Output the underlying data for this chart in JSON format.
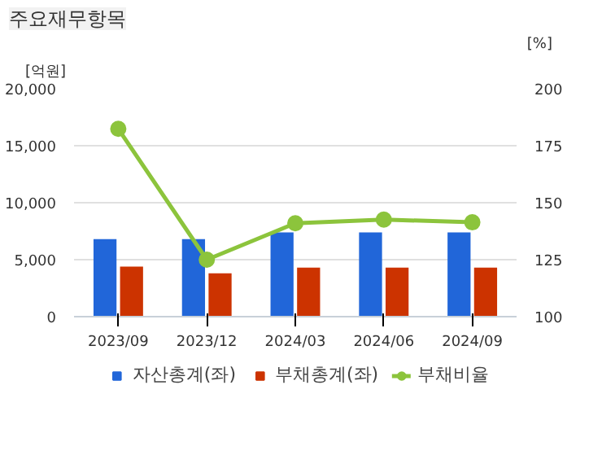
{
  "chart_data": {
    "type": "bar",
    "title": "주요재무항목",
    "ylabel": "[억원]",
    "y2label": "[%]",
    "categories": [
      "2023/09",
      "2023/12",
      "2024/03",
      "2024/06",
      "2024/09"
    ],
    "series": [
      {
        "name": "자산총계(좌)",
        "color": "#2166d9",
        "values": [
          6800,
          6800,
          7400,
          7400,
          7400
        ]
      },
      {
        "name": "부채총계(좌)",
        "color": "#cc3300",
        "values": [
          4400,
          3800,
          4300,
          4300,
          4300
        ]
      },
      {
        "name": "부채비율",
        "type": "line",
        "axis": "y2",
        "color": "#8cc43c",
        "values": [
          182.4,
          125,
          141,
          142.6,
          141.4
        ]
      }
    ],
    "ylim": [
      0,
      20000
    ],
    "yticks": [
      {
        "value": 0,
        "label": "0"
      },
      {
        "value": 5000,
        "label": "5,000"
      },
      {
        "value": 10000,
        "label": "10,000"
      },
      {
        "value": 15000,
        "label": "15,000"
      },
      {
        "value": 20000,
        "label": "20,000"
      }
    ],
    "y2lim": [
      100,
      200
    ],
    "y2ticks": [
      100,
      125,
      150,
      175,
      200
    ],
    "grid": "y",
    "legend": "bottom",
    "marker": "circle",
    "line_style": "solid"
  }
}
